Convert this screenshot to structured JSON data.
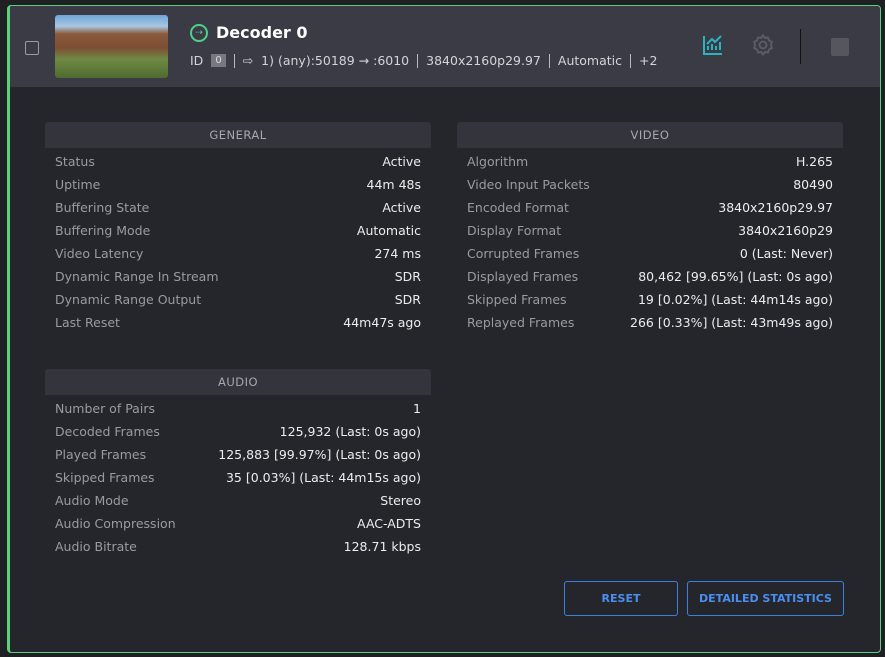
{
  "header": {
    "title": "Decoder 0",
    "id_label": "ID",
    "id_value": "0",
    "stream": "1) (any):50189 → :6010",
    "format": "3840x2160p29.97",
    "mode": "Automatic",
    "more": "+2"
  },
  "colors": {
    "accent_green": "#5fd07a",
    "chart_icon": "#2ab3c0",
    "button": "#3d7fe0"
  },
  "general": {
    "title": "GENERAL",
    "rows": [
      [
        "Status",
        "Active"
      ],
      [
        "Uptime",
        "44m 48s"
      ],
      [
        "Buffering State",
        "Active"
      ],
      [
        "Buffering Mode",
        "Automatic"
      ],
      [
        "Video Latency",
        "274 ms"
      ],
      [
        "Dynamic Range In Stream",
        "SDR"
      ],
      [
        "Dynamic Range Output",
        "SDR"
      ],
      [
        "Last Reset",
        "44m47s ago"
      ]
    ]
  },
  "audio": {
    "title": "AUDIO",
    "rows": [
      [
        "Number of Pairs",
        "1"
      ],
      [
        "Decoded Frames",
        "125,932 (Last: 0s ago)"
      ],
      [
        "Played Frames",
        "125,883 [99.97%] (Last: 0s ago)"
      ],
      [
        "Skipped Frames",
        "35 [0.03%] (Last: 44m15s ago)"
      ],
      [
        "Audio Mode",
        "Stereo"
      ],
      [
        "Audio Compression",
        "AAC-ADTS"
      ],
      [
        "Audio Bitrate",
        "128.71 kbps"
      ]
    ]
  },
  "video": {
    "title": "VIDEO",
    "rows": [
      [
        "Algorithm",
        "H.265"
      ],
      [
        "Video Input Packets",
        "80490"
      ],
      [
        "Encoded Format",
        "3840x2160p29.97"
      ],
      [
        "Display Format",
        "3840x2160p29"
      ],
      [
        "Corrupted Frames",
        "0 (Last: Never)"
      ],
      [
        "Displayed Frames",
        "80,462 [99.65%] (Last: 0s ago)"
      ],
      [
        "Skipped Frames",
        "19 [0.02%] (Last: 44m14s ago)"
      ],
      [
        "Replayed Frames",
        "266 [0.33%] (Last: 43m49s ago)"
      ]
    ]
  },
  "buttons": {
    "reset": "RESET",
    "detailed": "DETAILED STATISTICS"
  }
}
